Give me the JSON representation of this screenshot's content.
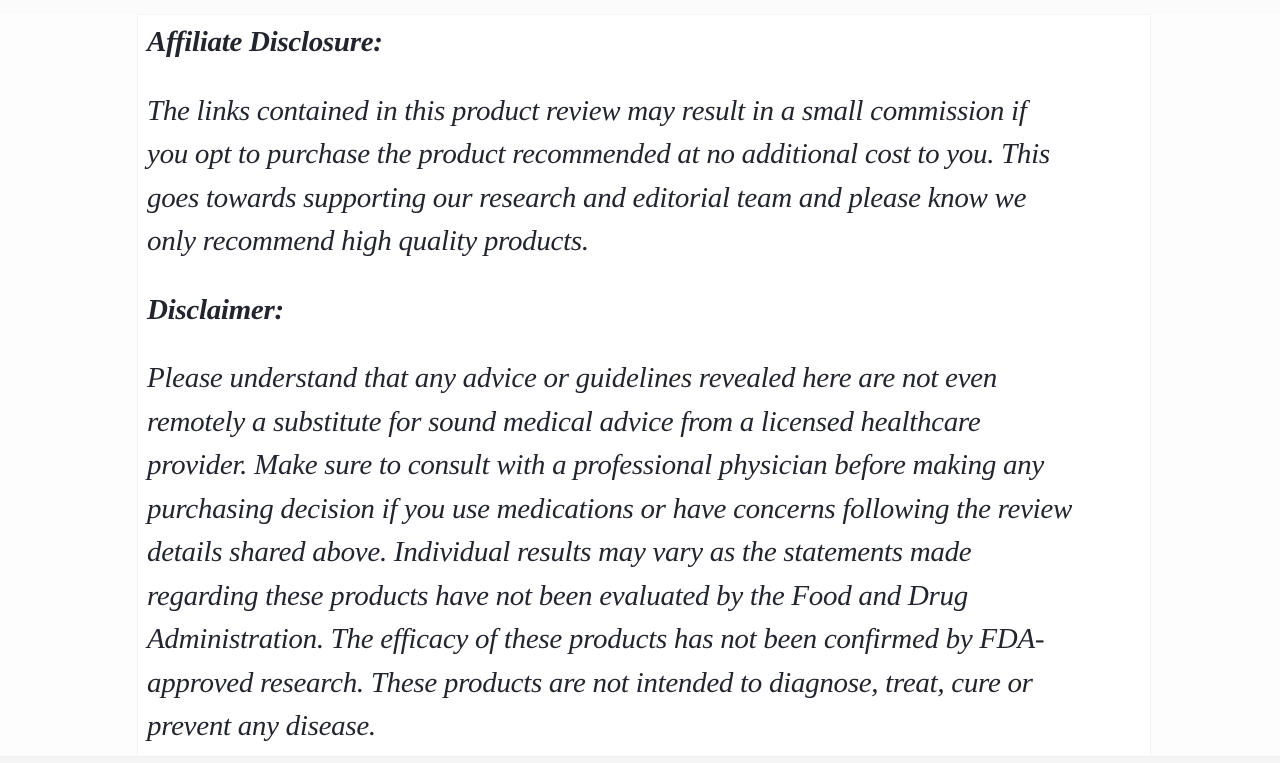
{
  "page": {
    "background_color": "#fdfdfd",
    "card_background_color": "#ffffff",
    "card_border_color": "#f4f4f4",
    "bottom_strip_color": "#f5f5f5",
    "text_color": "#23252e"
  },
  "article": {
    "sections": [
      {
        "heading": "Affiliate Disclosure:",
        "lines": [
          "The links contained in this product review may result in a small commission if",
          "you opt to purchase the product recommended at no additional cost to you. This",
          "goes towards supporting our research and editorial team and please know we",
          "only recommend high quality products."
        ]
      },
      {
        "heading": "Disclaimer:",
        "lines": [
          "Please understand that any advice or guidelines revealed here are not even",
          "remotely a substitute for sound medical advice from a licensed healthcare",
          "provider. Make sure to consult with a professional physician before making any",
          "purchasing decision if you use medications or have concerns following the review",
          "details shared above. Individual results may vary as the statements made",
          "regarding these products have not been evaluated by the Food and Drug",
          "Administration. The efficacy of these products has not been confirmed by FDA-",
          "approved research. These products are not intended to diagnose, treat, cure or",
          "prevent any disease."
        ]
      }
    ]
  }
}
